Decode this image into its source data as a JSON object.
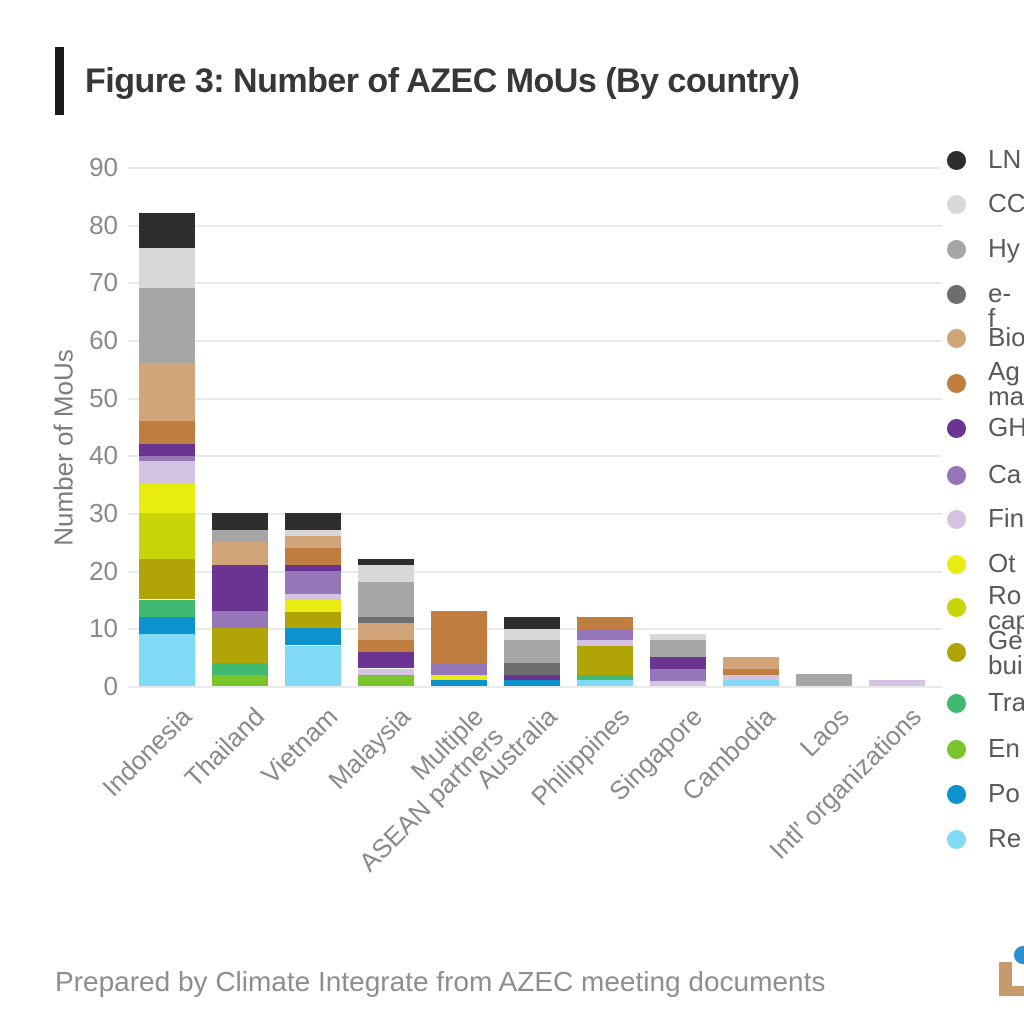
{
  "header": {
    "title": "Figure 3: Number of AZEC MoUs (By country)"
  },
  "footer": {
    "credit": "Prepared by Climate Integrate from AZEC meeting documents"
  },
  "logo": {
    "name": "climate-integrate-logo-partial",
    "l_color": "#c69a6d",
    "dot_color": "#2d90cf"
  },
  "chart_data": {
    "type": "bar",
    "stacked": true,
    "title": "Figure 3: Number of AZEC MoUs (By country)",
    "xlabel": "",
    "ylabel": "Number of MoUs",
    "ylim": [
      0,
      90
    ],
    "ytick_interval": 10,
    "yticks": [
      0,
      10,
      20,
      30,
      40,
      50,
      60,
      70,
      80,
      90
    ],
    "grid": true,
    "legend_position": "right",
    "legend_truncated_at_right_edge": true,
    "categories": [
      "Indonesia",
      "Thailand",
      "Vietnam",
      "Malaysia",
      "Multiple ASEAN partners",
      "Australia",
      "Philippines",
      "Singapore",
      "Cambodia",
      "Laos",
      "Intl' organizations"
    ],
    "category_label_lines": [
      [
        "Indonesia"
      ],
      [
        "Thailand"
      ],
      [
        "Vietnam"
      ],
      [
        "Malaysia"
      ],
      [
        "Multiple",
        "ASEAN partners"
      ],
      [
        "Australia"
      ],
      [
        "Philippines"
      ],
      [
        "Singapore"
      ],
      [
        "Cambodia"
      ],
      [
        "Laos"
      ],
      [
        "Intl' organizations"
      ]
    ],
    "category_totals": [
      82,
      30,
      30,
      22,
      13,
      12,
      12,
      9,
      5,
      2,
      1
    ],
    "series": [
      {
        "name": "LN",
        "label_lines": [
          "LN"
        ],
        "color": "#2e2e2e",
        "values": [
          6,
          3,
          3,
          1,
          0,
          2,
          0,
          0,
          0,
          0,
          0
        ]
      },
      {
        "name": "CC",
        "label_lines": [
          "CC"
        ],
        "color": "#d8d8d8",
        "values": [
          7,
          0,
          1,
          3,
          0,
          2,
          0,
          1,
          0,
          0,
          0
        ]
      },
      {
        "name": "Hy",
        "label_lines": [
          "Hy"
        ],
        "color": "#a6a6a6",
        "values": [
          13,
          2,
          0,
          6,
          0,
          4,
          0,
          3,
          0,
          2,
          0
        ]
      },
      {
        "name": "e-f",
        "label_lines": [
          "e-f"
        ],
        "color": "#6e6e6e",
        "values": [
          0,
          0,
          0,
          1,
          0,
          2,
          0,
          0,
          0,
          0,
          0
        ]
      },
      {
        "name": "Bio",
        "label_lines": [
          "Bio"
        ],
        "color": "#d1a47a",
        "values": [
          10,
          4,
          2,
          3,
          0,
          0,
          0,
          0,
          2,
          0,
          0
        ]
      },
      {
        "name": "Ag ma",
        "label_lines": [
          "Ag",
          "ma"
        ],
        "color": "#c07d40",
        "values": [
          4,
          0,
          3,
          2,
          9,
          0,
          2,
          0,
          1,
          0,
          0
        ]
      },
      {
        "name": "GH",
        "label_lines": [
          "GH"
        ],
        "color": "#6b3493",
        "values": [
          2,
          8,
          1,
          3,
          0,
          1,
          0,
          2,
          0,
          0,
          0
        ]
      },
      {
        "name": "Ca",
        "label_lines": [
          "Ca"
        ],
        "color": "#9576b9",
        "values": [
          1,
          3,
          4,
          0,
          2,
          0,
          2,
          2,
          0,
          0,
          0
        ]
      },
      {
        "name": "Fin",
        "label_lines": [
          "Fin"
        ],
        "color": "#d4c3e1",
        "values": [
          4,
          0,
          1,
          1,
          0,
          0,
          1,
          1,
          1,
          0,
          1
        ]
      },
      {
        "name": "Ot",
        "label_lines": [
          "Ot"
        ],
        "color": "#e9ec10",
        "values": [
          5,
          0,
          2,
          0,
          1,
          0,
          0,
          0,
          0,
          0,
          0
        ]
      },
      {
        "name": "Ro cap",
        "label_lines": [
          "Ro",
          "cap"
        ],
        "color": "#c8d509",
        "values": [
          8,
          0,
          0,
          0,
          0,
          0,
          0,
          0,
          0,
          0,
          0
        ]
      },
      {
        "name": "Ge bui",
        "label_lines": [
          "Ge",
          "bui"
        ],
        "color": "#b1a406",
        "values": [
          7,
          6,
          3,
          0,
          0,
          0,
          5,
          0,
          0,
          0,
          0
        ]
      },
      {
        "name": "Tra",
        "label_lines": [
          "Tra"
        ],
        "color": "#3fba70",
        "values": [
          3,
          2,
          0,
          0,
          0,
          0,
          1,
          0,
          0,
          0,
          0
        ]
      },
      {
        "name": "En",
        "label_lines": [
          "En"
        ],
        "color": "#7ac42c",
        "values": [
          0,
          2,
          0,
          2,
          0,
          0,
          0,
          0,
          0,
          0,
          0
        ]
      },
      {
        "name": "Po",
        "label_lines": [
          "Po"
        ],
        "color": "#0c92cc",
        "values": [
          3,
          0,
          3,
          0,
          1,
          1,
          0,
          0,
          0,
          0,
          0
        ]
      },
      {
        "name": "Re",
        "label_lines": [
          "Re"
        ],
        "color": "#81dbf7",
        "values": [
          9,
          0,
          7,
          0,
          0,
          0,
          1,
          0,
          1,
          0,
          0
        ]
      }
    ]
  }
}
